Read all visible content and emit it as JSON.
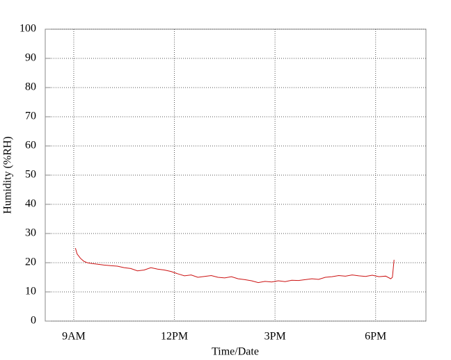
{
  "chart_data": {
    "type": "line",
    "x_label": "Time/Date",
    "y_label": "Humidity (%RH)",
    "x": [
      9.05,
      9.1,
      9.2,
      9.3,
      9.4,
      9.5,
      9.7,
      9.9,
      10.1,
      10.3,
      10.5,
      10.7,
      10.9,
      11.1,
      11.3,
      11.5,
      11.7,
      11.9,
      12.1,
      12.3,
      12.5,
      12.7,
      12.9,
      13.1,
      13.3,
      13.5,
      13.7,
      13.9,
      14.1,
      14.3,
      14.5,
      14.7,
      14.9,
      15.1,
      15.3,
      15.5,
      15.7,
      15.9,
      16.1,
      16.3,
      16.5,
      16.7,
      16.9,
      17.1,
      17.3,
      17.5,
      17.7,
      17.9,
      18.1,
      18.3,
      18.45,
      18.5,
      18.55
    ],
    "series": [
      {
        "color": "#cc1111",
        "values": [
          25,
          23,
          21.5,
          20.5,
          20,
          19.8,
          19.5,
          19.2,
          19,
          18.8,
          18.3,
          18,
          17.2,
          17.5,
          18.3,
          17.8,
          17.5,
          17,
          16.2,
          15.5,
          15.8,
          15,
          15.3,
          15.6,
          15,
          14.8,
          15.2,
          14.5,
          14.2,
          13.8,
          13.2,
          13.6,
          13.4,
          13.8,
          13.5,
          14,
          13.9,
          14.2,
          14.5,
          14.3,
          15,
          15.2,
          15.6,
          15.4,
          15.8,
          15.5,
          15.3,
          15.7,
          15.2,
          15.4,
          14.5,
          15,
          21
        ]
      }
    ],
    "xlim": [
      8.15,
      19.5
    ],
    "xticks": [
      {
        "value": 9,
        "label": "9AM"
      },
      {
        "value": 12,
        "label": "12PM"
      },
      {
        "value": 15,
        "label": "3PM"
      },
      {
        "value": 18,
        "label": "6PM"
      }
    ],
    "ylim": [
      0,
      100
    ],
    "yticks": [
      0,
      10,
      20,
      30,
      40,
      50,
      60,
      70,
      80,
      90,
      100
    ],
    "grid": true
  }
}
